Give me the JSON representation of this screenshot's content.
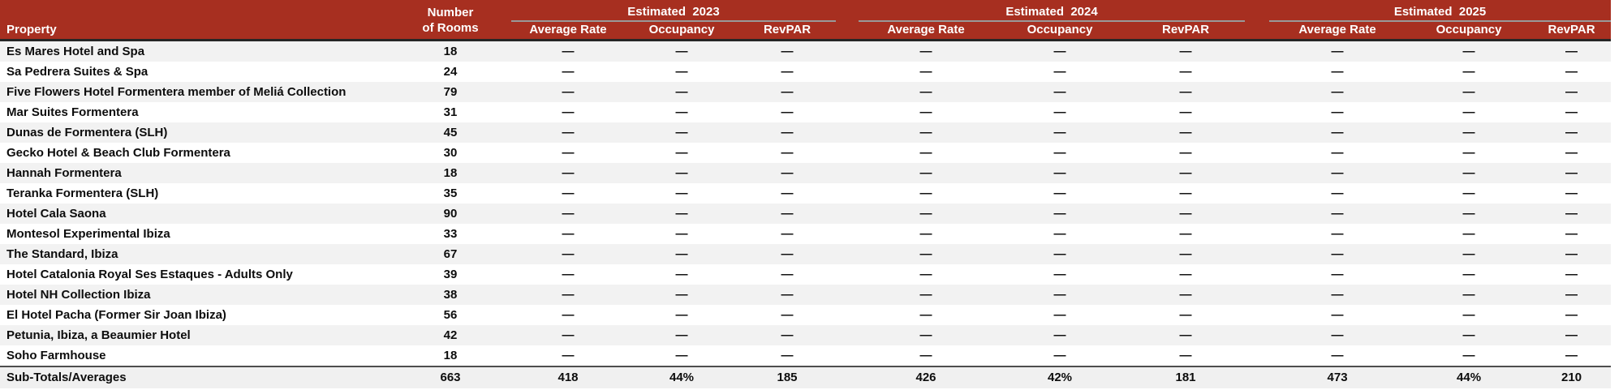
{
  "colors": {
    "header_bg": "#A72F20",
    "header_text": "#FFFFFF",
    "stripe": "#F2F2F2",
    "group_rule": "#999999",
    "header_divider": "#262626",
    "totals_border": "#4D4D4D",
    "totals_bg": "#F0F0F0"
  },
  "table": {
    "header": {
      "property": "Property",
      "rooms_line1": "Number",
      "rooms_line2": "of Rooms",
      "groups": [
        {
          "label": "Estimated  2023",
          "cols": [
            "Average Rate",
            "Occupancy",
            "RevPAR"
          ]
        },
        {
          "label": "Estimated  2024",
          "cols": [
            "Average Rate",
            "Occupancy",
            "RevPAR"
          ]
        },
        {
          "label": "Estimated  2025",
          "cols": [
            "Average Rate",
            "Occupancy",
            "RevPAR"
          ]
        }
      ]
    },
    "rows": [
      {
        "property": "Es Mares Hotel and Spa",
        "rooms": "18",
        "values": [
          "—",
          "—",
          "—",
          "—",
          "—",
          "—",
          "—",
          "—",
          "—"
        ]
      },
      {
        "property": "Sa Pedrera Suites & Spa",
        "rooms": "24",
        "values": [
          "—",
          "—",
          "—",
          "—",
          "—",
          "—",
          "—",
          "—",
          "—"
        ]
      },
      {
        "property": "Five Flowers Hotel Formentera member of Meliá Collection",
        "rooms": "79",
        "values": [
          "—",
          "—",
          "—",
          "—",
          "—",
          "—",
          "—",
          "—",
          "—"
        ]
      },
      {
        "property": "Mar Suites Formentera",
        "rooms": "31",
        "values": [
          "—",
          "—",
          "—",
          "—",
          "—",
          "—",
          "—",
          "—",
          "—"
        ]
      },
      {
        "property": "Dunas de Formentera (SLH)",
        "rooms": "45",
        "values": [
          "—",
          "—",
          "—",
          "—",
          "—",
          "—",
          "—",
          "—",
          "—"
        ]
      },
      {
        "property": "Gecko Hotel & Beach Club Formentera",
        "rooms": "30",
        "values": [
          "—",
          "—",
          "—",
          "—",
          "—",
          "—",
          "—",
          "—",
          "—"
        ]
      },
      {
        "property": "Hannah Formentera",
        "rooms": "18",
        "values": [
          "—",
          "—",
          "—",
          "—",
          "—",
          "—",
          "—",
          "—",
          "—"
        ]
      },
      {
        "property": "Teranka Formentera (SLH)",
        "rooms": "35",
        "values": [
          "—",
          "—",
          "—",
          "—",
          "—",
          "—",
          "—",
          "—",
          "—"
        ]
      },
      {
        "property": "Hotel Cala Saona",
        "rooms": "90",
        "values": [
          "—",
          "—",
          "—",
          "—",
          "—",
          "—",
          "—",
          "—",
          "—"
        ]
      },
      {
        "property": "Montesol Experimental Ibiza",
        "rooms": "33",
        "values": [
          "—",
          "—",
          "—",
          "—",
          "—",
          "—",
          "—",
          "—",
          "—"
        ]
      },
      {
        "property": "The Standard, Ibiza",
        "rooms": "67",
        "values": [
          "—",
          "—",
          "—",
          "—",
          "—",
          "—",
          "—",
          "—",
          "—"
        ]
      },
      {
        "property": "Hotel Catalonia Royal Ses Estaques - Adults Only",
        "rooms": "39",
        "values": [
          "—",
          "—",
          "—",
          "—",
          "—",
          "—",
          "—",
          "—",
          "—"
        ]
      },
      {
        "property": "Hotel NH Collection Ibiza",
        "rooms": "38",
        "values": [
          "—",
          "—",
          "—",
          "—",
          "—",
          "—",
          "—",
          "—",
          "—"
        ]
      },
      {
        "property": "El Hotel Pacha (Former Sir Joan Ibiza)",
        "rooms": "56",
        "values": [
          "—",
          "—",
          "—",
          "—",
          "—",
          "—",
          "—",
          "—",
          "—"
        ]
      },
      {
        "property": "Petunia, Ibiza, a Beaumier Hotel",
        "rooms": "42",
        "values": [
          "—",
          "—",
          "—",
          "—",
          "—",
          "—",
          "—",
          "—",
          "—"
        ]
      },
      {
        "property": "Soho Farmhouse",
        "rooms": "18",
        "values": [
          "—",
          "—",
          "—",
          "—",
          "—",
          "—",
          "—",
          "—",
          "—"
        ]
      }
    ],
    "totals": {
      "label": "Sub-Totals/Averages",
      "rooms": "663",
      "values": [
        "418",
        "44%",
        "185",
        "426",
        "42%",
        "181",
        "473",
        "44%",
        "210"
      ]
    }
  }
}
